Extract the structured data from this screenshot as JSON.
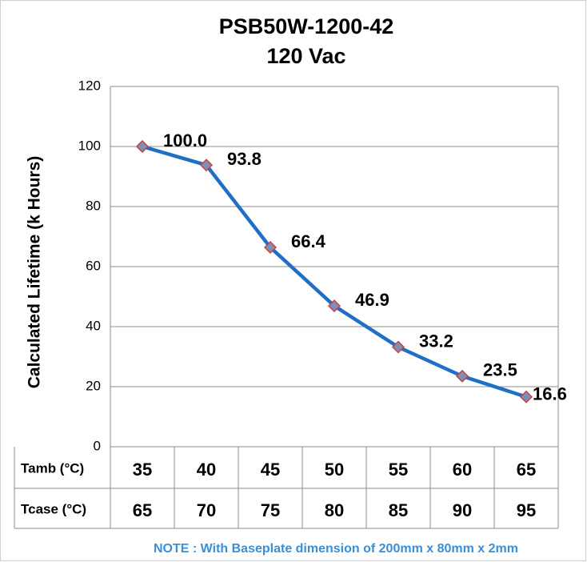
{
  "chart_data": {
    "type": "line",
    "title": "PSB50W-1200-42",
    "subtitle": "120 Vac",
    "y_label": "Calculated Lifetime (k Hours)",
    "category_label": "Tamb (°C)",
    "categories": [
      "35",
      "40",
      "45",
      "50",
      "55",
      "60",
      "65"
    ],
    "secondary_categories": {
      "label": "Tcase (°C)",
      "values": [
        "65",
        "70",
        "75",
        "80",
        "85",
        "90",
        "95"
      ]
    },
    "values": [
      100,
      93.8,
      66.4,
      46.9,
      33.2,
      23.5,
      16.6
    ],
    "value_labels": [
      "100.0",
      "93.8",
      "66.4",
      "46.9",
      "33.2",
      "23.5",
      "16.6"
    ],
    "color": "#1f6fc5",
    "marker_color": "#7d8fb5",
    "marker_edge": "#c9423f",
    "ylim": [
      0,
      120
    ],
    "yticks": [
      0,
      20,
      40,
      60,
      80,
      100,
      120
    ],
    "grid": true,
    "note": "NOTE : With Baseplate dimension of 200mm x 80mm x 2mm"
  }
}
